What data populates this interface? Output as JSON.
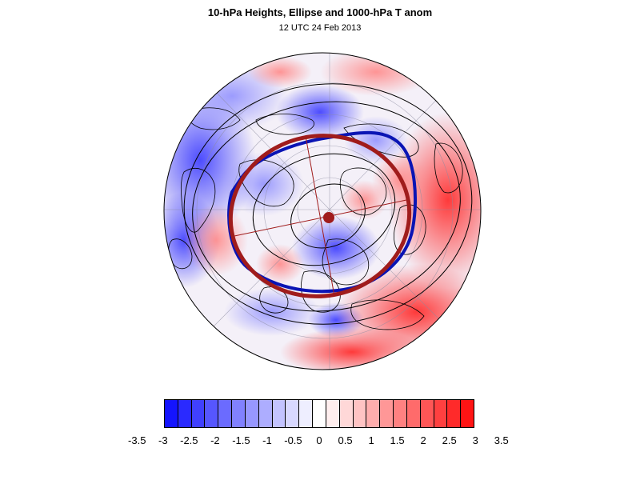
{
  "title": "10-hPa Heights, Ellipse and 1000-hPa T anom",
  "subtitle": "12 UTC 24 Feb 2013",
  "colorbar": {
    "colors": [
      "#1414ff",
      "#2a2aff",
      "#4040ff",
      "#5656ff",
      "#6b6bff",
      "#8181ff",
      "#9797ff",
      "#adadff",
      "#c3c3ff",
      "#d8d8ff",
      "#eeeeff",
      "#ffffff",
      "#ffeeee",
      "#ffd8d8",
      "#ffc3c3",
      "#ffadad",
      "#ff9797",
      "#ff8181",
      "#ff6b6b",
      "#ff5656",
      "#ff4040",
      "#ff2a2a",
      "#ff1414"
    ],
    "tick_labels": [
      "-3.5",
      "-3",
      "-2.5",
      "-2",
      "-1.5",
      "-1",
      "-0.5",
      "0",
      "0.5",
      "1",
      "1.5",
      "2",
      "2.5",
      "3",
      "3.5"
    ]
  },
  "map": {
    "projection": "north-polar-orthographic",
    "ellipse_color": "#a01c1c",
    "vortex_contour_color": "#0a14b4",
    "height_contour_color": "#000000"
  }
}
